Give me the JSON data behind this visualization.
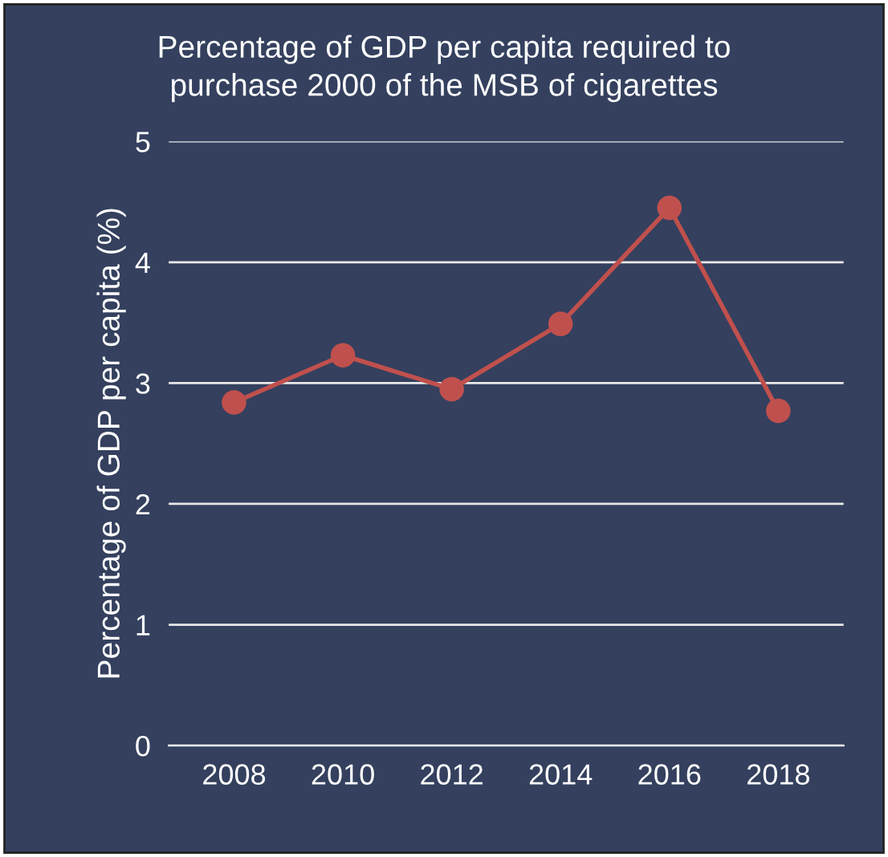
{
  "chart_data": {
    "type": "line",
    "title": "Percentage of GDP per capita required to\npurchase 2000 of the MSB of cigarettes",
    "ylabel": "Percentage of GDP per capita (%)",
    "categories": [
      "2008",
      "2010",
      "2012",
      "2014",
      "2016",
      "2018"
    ],
    "series": [
      {
        "color": "#c0504d",
        "values": [
          2.84,
          3.23,
          2.95,
          3.49,
          4.45,
          2.77
        ]
      }
    ],
    "ylim": [
      0,
      5
    ],
    "yticks": [
      0,
      1,
      2,
      3,
      4,
      5
    ],
    "grid": "y",
    "marker": "circle",
    "line_style": "solid",
    "legend": false
  }
}
